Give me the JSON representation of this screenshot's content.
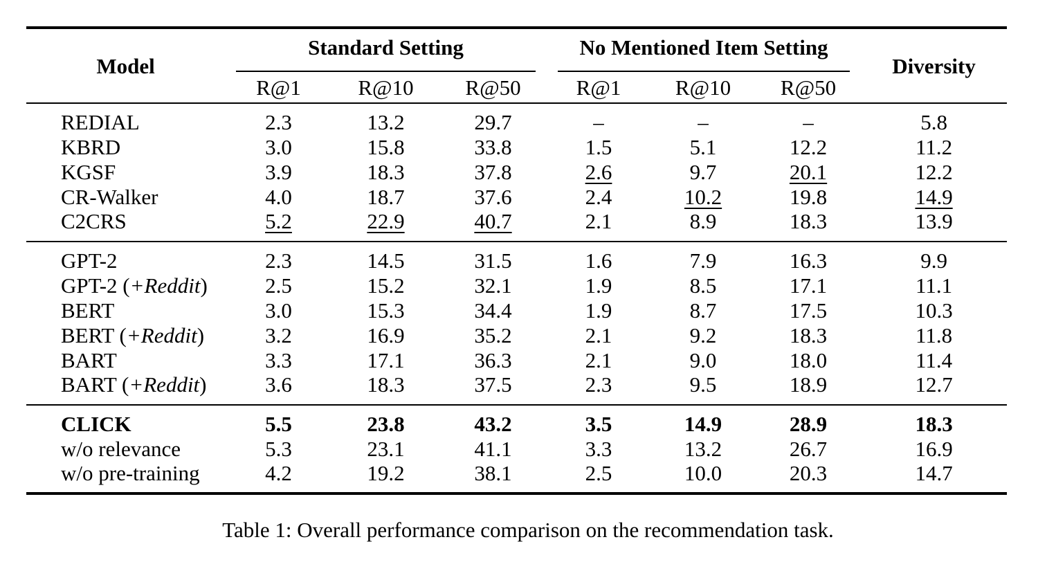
{
  "colors": {
    "text": "#000000",
    "background": "#ffffff",
    "rule": "#000000"
  },
  "table": {
    "caption": "Table 1: Overall performance comparison on the recommendation task.",
    "headers": {
      "model": "Model",
      "standard_setting": "Standard Setting",
      "no_mentioned_item_setting": "No Mentioned Item Setting",
      "diversity": "Diversity",
      "sub": [
        "R@1",
        "R@10",
        "R@50",
        "R@1",
        "R@10",
        "R@50"
      ]
    },
    "groups": [
      {
        "rows": [
          {
            "model": [
              {
                "t": "REDIAL"
              }
            ],
            "cells": [
              {
                "v": "2.3"
              },
              {
                "v": "13.2"
              },
              {
                "v": "29.7"
              },
              {
                "v": "–"
              },
              {
                "v": "–"
              },
              {
                "v": "–"
              },
              {
                "v": "5.8"
              }
            ]
          },
          {
            "model": [
              {
                "t": "KBRD"
              }
            ],
            "cells": [
              {
                "v": "3.0"
              },
              {
                "v": "15.8"
              },
              {
                "v": "33.8"
              },
              {
                "v": "1.5"
              },
              {
                "v": "5.1"
              },
              {
                "v": "12.2"
              },
              {
                "v": "11.2"
              }
            ]
          },
          {
            "model": [
              {
                "t": "KGSF"
              }
            ],
            "cells": [
              {
                "v": "3.9"
              },
              {
                "v": "18.3"
              },
              {
                "v": "37.8"
              },
              {
                "v": "2.6",
                "u": true
              },
              {
                "v": "9.7"
              },
              {
                "v": "20.1",
                "u": true
              },
              {
                "v": "12.2"
              }
            ]
          },
          {
            "model": [
              {
                "t": "CR-Walker"
              }
            ],
            "cells": [
              {
                "v": "4.0"
              },
              {
                "v": "18.7"
              },
              {
                "v": "37.6"
              },
              {
                "v": "2.4"
              },
              {
                "v": "10.2",
                "u": true
              },
              {
                "v": "19.8"
              },
              {
                "v": "14.9",
                "u": true
              }
            ]
          },
          {
            "model": [
              {
                "t": "C2CRS"
              }
            ],
            "cells": [
              {
                "v": "5.2",
                "u": true
              },
              {
                "v": "22.9",
                "u": true
              },
              {
                "v": "40.7",
                "u": true
              },
              {
                "v": "2.1"
              },
              {
                "v": "8.9"
              },
              {
                "v": "18.3"
              },
              {
                "v": "13.9"
              }
            ]
          }
        ]
      },
      {
        "rows": [
          {
            "model": [
              {
                "t": "GPT-2"
              }
            ],
            "cells": [
              {
                "v": "2.3"
              },
              {
                "v": "14.5"
              },
              {
                "v": "31.5"
              },
              {
                "v": "1.6"
              },
              {
                "v": "7.9"
              },
              {
                "v": "16.3"
              },
              {
                "v": "9.9"
              }
            ]
          },
          {
            "model": [
              {
                "t": "GPT-2 ("
              },
              {
                "t": "+Reddit",
                "i": true
              },
              {
                "t": ")"
              }
            ],
            "cells": [
              {
                "v": "2.5"
              },
              {
                "v": "15.2"
              },
              {
                "v": "32.1"
              },
              {
                "v": "1.9"
              },
              {
                "v": "8.5"
              },
              {
                "v": "17.1"
              },
              {
                "v": "11.1"
              }
            ]
          },
          {
            "model": [
              {
                "t": "BERT"
              }
            ],
            "cells": [
              {
                "v": "3.0"
              },
              {
                "v": "15.3"
              },
              {
                "v": "34.4"
              },
              {
                "v": "1.9"
              },
              {
                "v": "8.7"
              },
              {
                "v": "17.5"
              },
              {
                "v": "10.3"
              }
            ]
          },
          {
            "model": [
              {
                "t": "BERT ("
              },
              {
                "t": "+Reddit",
                "i": true
              },
              {
                "t": ")"
              }
            ],
            "cells": [
              {
                "v": "3.2"
              },
              {
                "v": "16.9"
              },
              {
                "v": "35.2"
              },
              {
                "v": "2.1"
              },
              {
                "v": "9.2"
              },
              {
                "v": "18.3"
              },
              {
                "v": "11.8"
              }
            ]
          },
          {
            "model": [
              {
                "t": "BART"
              }
            ],
            "cells": [
              {
                "v": "3.3"
              },
              {
                "v": "17.1"
              },
              {
                "v": "36.3"
              },
              {
                "v": "2.1"
              },
              {
                "v": "9.0"
              },
              {
                "v": "18.0"
              },
              {
                "v": "11.4"
              }
            ]
          },
          {
            "model": [
              {
                "t": "BART ("
              },
              {
                "t": "+Reddit",
                "i": true
              },
              {
                "t": ")"
              }
            ],
            "cells": [
              {
                "v": "3.6"
              },
              {
                "v": "18.3"
              },
              {
                "v": "37.5"
              },
              {
                "v": "2.3"
              },
              {
                "v": "9.5"
              },
              {
                "v": "18.9"
              },
              {
                "v": "12.7"
              }
            ]
          }
        ]
      },
      {
        "rows": [
          {
            "model": [
              {
                "t": "CLICK"
              }
            ],
            "bold": true,
            "cells": [
              {
                "v": "5.5"
              },
              {
                "v": "23.8"
              },
              {
                "v": "43.2"
              },
              {
                "v": "3.5"
              },
              {
                "v": "14.9"
              },
              {
                "v": "28.9"
              },
              {
                "v": "18.3"
              }
            ]
          },
          {
            "model": [
              {
                "t": "w/o relevance"
              }
            ],
            "cells": [
              {
                "v": "5.3"
              },
              {
                "v": "23.1"
              },
              {
                "v": "41.1"
              },
              {
                "v": "3.3"
              },
              {
                "v": "13.2"
              },
              {
                "v": "26.7"
              },
              {
                "v": "16.9"
              }
            ]
          },
          {
            "model": [
              {
                "t": "w/o pre-training"
              }
            ],
            "cells": [
              {
                "v": "4.2"
              },
              {
                "v": "19.2"
              },
              {
                "v": "38.1"
              },
              {
                "v": "2.5"
              },
              {
                "v": "10.0"
              },
              {
                "v": "20.3"
              },
              {
                "v": "14.7"
              }
            ]
          }
        ]
      }
    ]
  }
}
